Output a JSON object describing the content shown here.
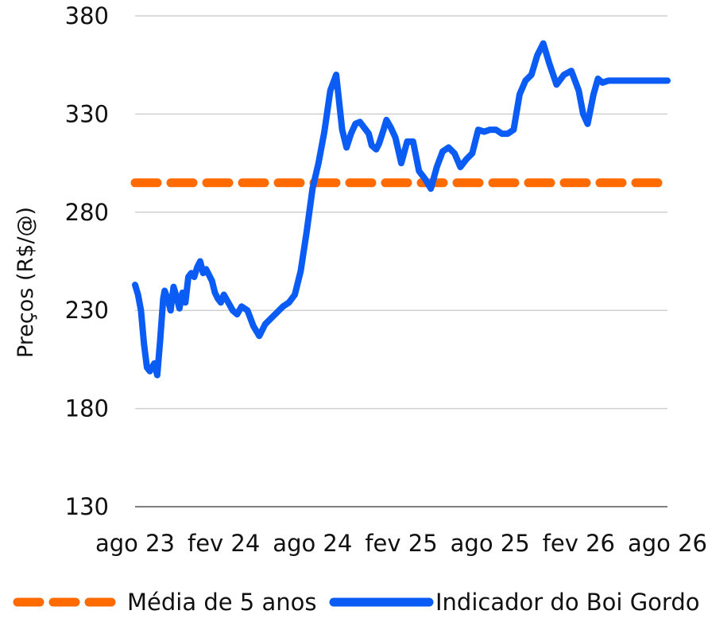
{
  "chart_data": {
    "type": "line",
    "title": "",
    "xlabel": "",
    "ylabel": "Preços (R$/@)",
    "ylim": [
      130,
      380
    ],
    "y_ticks": [
      380,
      330,
      280,
      230,
      180,
      130
    ],
    "x_tick_labels": [
      "ago 23",
      "fev 24",
      "ago 24",
      "fev 25",
      "ago 25",
      "fev 26",
      "ago 26"
    ],
    "x_range_months": [
      0,
      36
    ],
    "grid": true,
    "legend_position": "bottom",
    "colors": {
      "average": "#FF6B00",
      "indicator": "#0B5CF5",
      "grid": "#D0D0D0",
      "axis": "#808080"
    },
    "series": [
      {
        "name": "Média de 5 anos",
        "style": "dashed",
        "x": [
          0,
          36
        ],
        "values": [
          295,
          295
        ]
      },
      {
        "name": "Indicador do Boi Gordo",
        "style": "solid",
        "x": [
          0,
          0.2,
          0.4,
          0.6,
          0.8,
          1.0,
          1.3,
          1.5,
          1.7,
          1.9,
          2.0,
          2.2,
          2.4,
          2.6,
          2.8,
          3.0,
          3.2,
          3.4,
          3.6,
          3.8,
          4.0,
          4.2,
          4.4,
          4.6,
          4.8,
          5.0,
          5.2,
          5.4,
          5.6,
          5.8,
          6.0,
          6.3,
          6.6,
          6.9,
          7.2,
          7.6,
          8.0,
          8.4,
          8.8,
          9.2,
          9.6,
          10.0,
          10.4,
          10.8,
          11.2,
          11.6,
          12.0,
          12.4,
          12.8,
          13.2,
          13.6,
          14.0,
          14.3,
          14.6,
          14.9,
          15.2,
          15.5,
          15.8,
          16.0,
          16.3,
          16.5,
          16.8,
          17.0,
          17.3,
          17.6,
          18.0,
          18.4,
          18.8,
          19.2,
          19.6,
          20.0,
          20.4,
          20.8,
          21.2,
          21.6,
          22.0,
          22.4,
          22.8,
          23.2,
          23.6,
          24.0,
          24.4,
          24.8,
          25.2,
          25.6,
          26.0,
          26.4,
          26.8,
          27.2,
          27.6,
          28.0,
          28.5,
          29.0,
          29.5,
          30.0,
          30.3,
          30.6,
          31.0,
          31.3,
          31.6,
          32.0,
          32.3,
          32.6,
          33.0,
          33.3,
          33.6,
          34.0,
          34.3,
          34.6,
          35.0,
          35.3,
          35.6,
          36.0
        ],
        "values": [
          243,
          238,
          230,
          213,
          201,
          199,
          203,
          197,
          215,
          236,
          240,
          236,
          230,
          242,
          237,
          231,
          239,
          234,
          247,
          249,
          247,
          252,
          255,
          249,
          251,
          248,
          245,
          239,
          236,
          234,
          238,
          234,
          230,
          228,
          232,
          230,
          222,
          217,
          223,
          226,
          229,
          232,
          234,
          238,
          250,
          270,
          292,
          305,
          321,
          342,
          350,
          322,
          313,
          320,
          325,
          326,
          323,
          320,
          314,
          312,
          315,
          322,
          327,
          323,
          318,
          305,
          316,
          316,
          301,
          297,
          292,
          303,
          311,
          313,
          310,
          303,
          307,
          310,
          322,
          321,
          322,
          322,
          320,
          320,
          322,
          340,
          347,
          350,
          360,
          366,
          356,
          345,
          350,
          352,
          342,
          330,
          325,
          340,
          348,
          346,
          347,
          347,
          347,
          347,
          347,
          347,
          347,
          347,
          347,
          347,
          347,
          347,
          347
        ]
      }
    ]
  }
}
